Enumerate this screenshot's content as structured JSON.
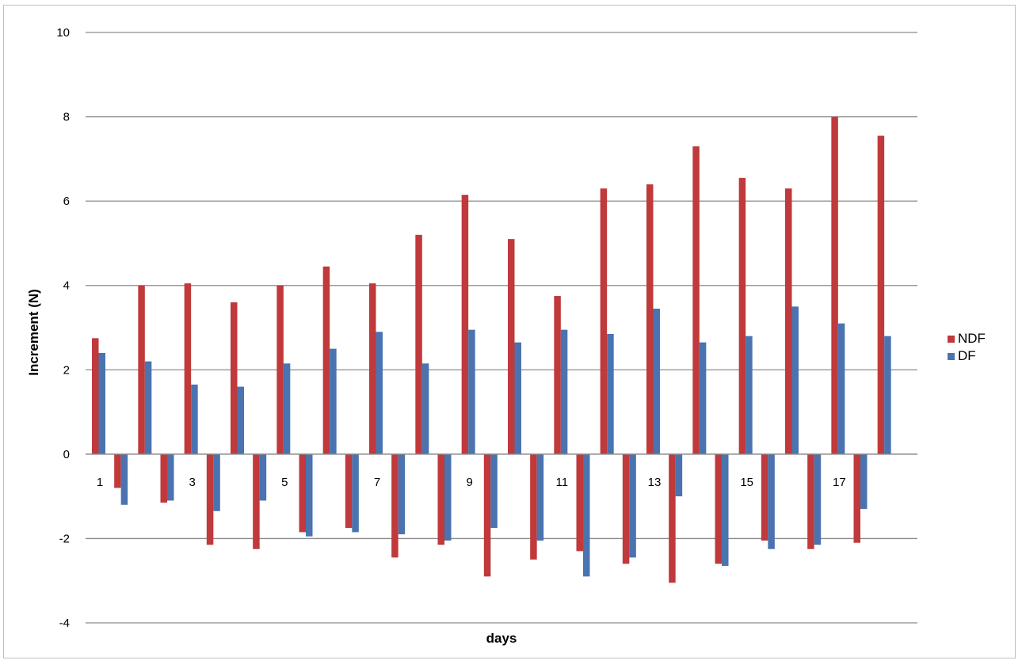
{
  "chart_data": {
    "type": "bar",
    "title": "",
    "xlabel": "days",
    "ylabel": "Increment (N)",
    "ylim": [
      -4,
      10
    ],
    "yticks": [
      -4,
      -2,
      0,
      2,
      4,
      6,
      8,
      10
    ],
    "grid": true,
    "legend_position": "right",
    "categories": [
      "1",
      "",
      "3",
      "",
      "5",
      "",
      "7",
      "",
      "9",
      "",
      "11",
      "",
      "13",
      "",
      "15",
      "",
      "17",
      ""
    ],
    "category_labels_shown": [
      "1",
      "3",
      "5",
      "7",
      "9",
      "11",
      "13",
      "15",
      "17"
    ],
    "series": [
      {
        "name": "NDF",
        "color": "#c0393b",
        "positive": [
          2.75,
          4.0,
          4.05,
          3.6,
          4.0,
          4.45,
          4.05,
          5.2,
          6.15,
          5.1,
          3.75,
          6.3,
          6.4,
          7.3,
          6.55,
          6.3,
          8.0,
          7.55
        ],
        "negative": [
          -0.8,
          -1.15,
          -2.15,
          -2.25,
          -1.85,
          -1.75,
          -2.45,
          -2.15,
          -2.9,
          -2.5,
          -2.3,
          -2.6,
          -3.05,
          -2.6,
          -2.05,
          -2.25,
          -2.1,
          null
        ]
      },
      {
        "name": "DF",
        "color": "#4a73b0",
        "positive": [
          2.4,
          2.2,
          1.65,
          1.6,
          2.15,
          2.5,
          2.9,
          2.15,
          2.95,
          2.65,
          2.95,
          2.85,
          3.45,
          2.65,
          2.8,
          3.5,
          3.1,
          2.8
        ],
        "negative": [
          -1.2,
          -1.1,
          -1.35,
          -1.1,
          -1.95,
          -1.85,
          -1.9,
          -2.05,
          -1.75,
          -2.05,
          -2.9,
          -2.45,
          -1.0,
          -2.65,
          -2.25,
          -2.15,
          -1.3,
          null
        ]
      }
    ]
  }
}
